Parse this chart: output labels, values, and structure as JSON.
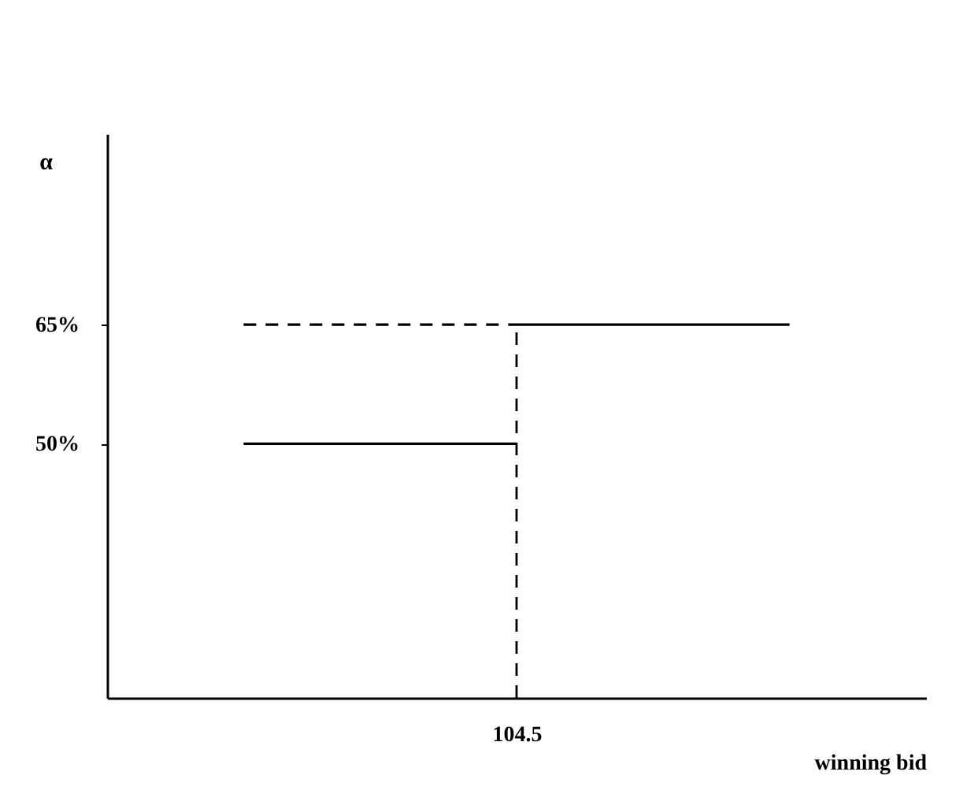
{
  "chart_data": {
    "type": "line",
    "ylabel": "α",
    "xlabel": "winning bid",
    "categories": [
      null,
      "104.5",
      null
    ],
    "series": [
      {
        "color": "#000000",
        "values": [
          50,
          50,
          null
        ],
        "line_style": "solid"
      },
      {
        "color": "#000000",
        "values": [
          null,
          65,
          65
        ],
        "line_style": "solid"
      },
      {
        "color": "#000000",
        "values": [
          65,
          65,
          null
        ],
        "line_style": "dashed"
      }
    ],
    "ref_lines": [
      {
        "axis": "x",
        "value": "104.5",
        "line_style": "dashed",
        "color": "#000000"
      }
    ],
    "ylim": [
      18,
      89
    ],
    "yticks": [
      {
        "value": 50,
        "label": "50%"
      },
      {
        "value": 65,
        "label": "65%"
      }
    ],
    "grid": false,
    "legend": false,
    "marker": "none"
  }
}
